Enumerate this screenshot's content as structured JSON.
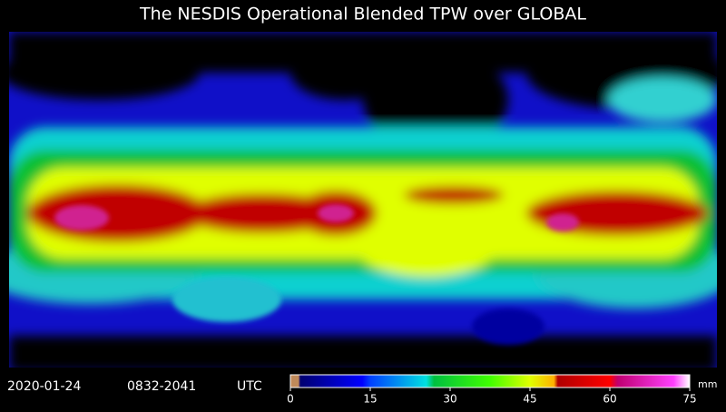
{
  "title": "The NESDIS Operational Blended TPW over GLOBAL",
  "date": "2020-01-24",
  "time": "0832-2041",
  "zone": "UTC",
  "colorbar": {
    "unit": "mm",
    "range": [
      0,
      75
    ],
    "ticks": [
      0,
      15,
      30,
      45,
      60,
      75
    ]
  }
}
